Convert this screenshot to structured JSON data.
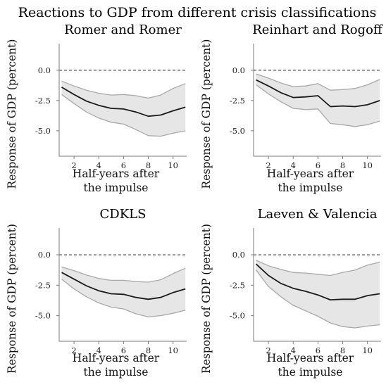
{
  "figure": {
    "title": "Reactions to GDP from different crisis classifications"
  },
  "chart_data": [
    {
      "type": "area",
      "title": "Romer and Romer",
      "xlabel": [
        "Half-years after",
        "the impulse"
      ],
      "ylabel": "Response of GDP (percent)",
      "xlim": [
        0.8,
        11.1
      ],
      "ylim": [
        -7.1,
        2.2
      ],
      "xticks": [
        2,
        4,
        6,
        8,
        10
      ],
      "yticks": [
        0.0,
        -2.5,
        -5.0
      ],
      "ytick_labels": [
        "0.0",
        "-2.5",
        "-5.0"
      ],
      "reference_line": 0.0,
      "x": [
        1,
        2,
        3,
        4,
        5,
        6,
        7,
        8,
        9,
        10,
        11
      ],
      "series": [
        {
          "role": "upper",
          "values": [
            -0.9,
            -1.3,
            -1.65,
            -1.9,
            -2.05,
            -2.0,
            -2.1,
            -2.3,
            -2.05,
            -1.5,
            -1.1
          ]
        },
        {
          "role": "point",
          "values": [
            -1.4,
            -2.0,
            -2.55,
            -2.9,
            -3.15,
            -3.2,
            -3.45,
            -3.8,
            -3.7,
            -3.35,
            -3.05
          ]
        },
        {
          "role": "lower",
          "values": [
            -2.0,
            -2.75,
            -3.45,
            -3.95,
            -4.3,
            -4.45,
            -4.9,
            -5.4,
            -5.45,
            -5.2,
            -5.0
          ]
        }
      ]
    },
    {
      "type": "area",
      "title": "Reinhart and Rogoff",
      "xlabel": [
        "Half-years after",
        "the impulse"
      ],
      "ylabel": "Response of GDP (percent)",
      "xlim": [
        0.8,
        11.1
      ],
      "ylim": [
        -7.1,
        2.2
      ],
      "xticks": [
        2,
        4,
        6,
        8,
        10
      ],
      "yticks": [
        0.0,
        -2.5,
        -5.0
      ],
      "ytick_labels": [
        "0.0",
        "-2.5",
        "-5.0"
      ],
      "reference_line": 0.0,
      "x": [
        1,
        2,
        3,
        4,
        5,
        6,
        7,
        8,
        9,
        10,
        11
      ],
      "series": [
        {
          "role": "upper",
          "values": [
            -0.3,
            -0.65,
            -1.05,
            -1.35,
            -1.3,
            -1.1,
            -1.65,
            -1.6,
            -1.5,
            -1.2,
            -0.75
          ]
        },
        {
          "role": "point",
          "values": [
            -0.8,
            -1.3,
            -1.85,
            -2.25,
            -2.2,
            -2.1,
            -3.0,
            -2.95,
            -3.0,
            -2.85,
            -2.5
          ]
        },
        {
          "role": "lower",
          "values": [
            -1.2,
            -1.95,
            -2.6,
            -3.15,
            -3.25,
            -3.2,
            -4.4,
            -4.5,
            -4.65,
            -4.5,
            -4.2
          ]
        }
      ]
    },
    {
      "type": "area",
      "title": "CDKLS",
      "xlabel": [
        "Half-years after",
        "the impulse"
      ],
      "ylabel": "Response of GDP (percent)",
      "xlim": [
        0.8,
        11.1
      ],
      "ylim": [
        -7.1,
        2.2
      ],
      "xticks": [
        2,
        4,
        6,
        8,
        10
      ],
      "yticks": [
        0.0,
        -2.5,
        -5.0
      ],
      "ytick_labels": [
        "0.0",
        "-2.5",
        "-5.0"
      ],
      "reference_line": 0.0,
      "x": [
        1,
        2,
        3,
        4,
        5,
        6,
        7,
        8,
        9,
        10,
        11
      ],
      "series": [
        {
          "role": "upper",
          "values": [
            -1.0,
            -1.3,
            -1.65,
            -1.95,
            -2.1,
            -2.1,
            -2.2,
            -2.25,
            -2.05,
            -1.55,
            -1.1
          ]
        },
        {
          "role": "point",
          "values": [
            -1.45,
            -2.0,
            -2.55,
            -2.95,
            -3.2,
            -3.25,
            -3.5,
            -3.65,
            -3.5,
            -3.1,
            -2.8
          ]
        },
        {
          "role": "lower",
          "values": [
            -2.0,
            -2.8,
            -3.45,
            -3.95,
            -4.3,
            -4.45,
            -4.85,
            -5.1,
            -5.0,
            -4.8,
            -4.55
          ]
        }
      ]
    },
    {
      "type": "area",
      "title": "Laeven & Valencia",
      "xlabel": [
        "Half-years after",
        "the impulse"
      ],
      "ylabel": "Response of GDP (percent)",
      "xlim": [
        0.8,
        11.1
      ],
      "ylim": [
        -7.1,
        2.2
      ],
      "xticks": [
        2,
        4,
        6,
        8,
        10
      ],
      "yticks": [
        0.0,
        -2.5,
        -5.0
      ],
      "ytick_labels": [
        "0.0",
        "-2.5",
        "-5.0"
      ],
      "reference_line": 0.0,
      "x": [
        1,
        2,
        3,
        4,
        5,
        6,
        7,
        8,
        9,
        10,
        11
      ],
      "series": [
        {
          "role": "upper",
          "values": [
            -0.45,
            -0.9,
            -1.2,
            -1.45,
            -1.5,
            -1.6,
            -1.7,
            -1.45,
            -1.25,
            -0.85,
            -0.6
          ]
        },
        {
          "role": "point",
          "values": [
            -0.75,
            -1.7,
            -2.35,
            -2.75,
            -3.0,
            -3.3,
            -3.7,
            -3.65,
            -3.65,
            -3.35,
            -3.2
          ]
        },
        {
          "role": "lower",
          "values": [
            -1.25,
            -2.6,
            -3.45,
            -4.15,
            -4.6,
            -5.05,
            -5.6,
            -5.9,
            -6.0,
            -5.85,
            -5.75
          ]
        }
      ]
    }
  ],
  "style": {
    "band_fill": "#e6e6e6",
    "band_edge": "#a8a8a8",
    "line_color": "#1a1a1a",
    "axis_color": "#7a7a7a",
    "zero_line_color": "#222222"
  }
}
